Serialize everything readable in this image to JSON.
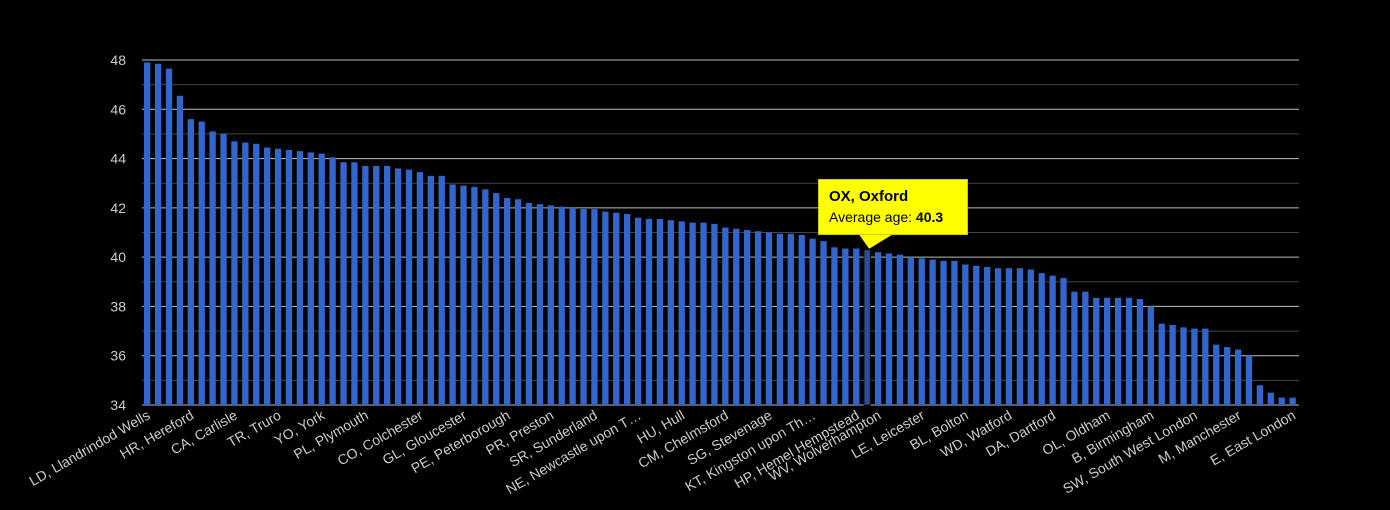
{
  "chart_data": {
    "type": "bar",
    "title": "",
    "xlabel": "",
    "ylabel": "",
    "ylim": [
      34,
      48
    ],
    "y_ticks": [
      34,
      36,
      38,
      40,
      42,
      44,
      46,
      48
    ],
    "grid": true,
    "legend": "none",
    "bar_color": "#3366cc",
    "background": "#000000",
    "highlighted_index": 66,
    "visible_labels": [
      {
        "index": 0,
        "label": "LD, Llandrindod Wells"
      },
      {
        "index": 4,
        "label": "HR, Hereford"
      },
      {
        "index": 8,
        "label": "CA, Carlisle"
      },
      {
        "index": 12,
        "label": "TR, Truro"
      },
      {
        "index": 16,
        "label": "YO, York"
      },
      {
        "index": 20,
        "label": "PL, Plymouth"
      },
      {
        "index": 25,
        "label": "CO, Colchester"
      },
      {
        "index": 29,
        "label": "GL, Gloucester"
      },
      {
        "index": 33,
        "label": "PE, Peterborough"
      },
      {
        "index": 37,
        "label": "PR, Preston"
      },
      {
        "index": 41,
        "label": "SR, Sunderland"
      },
      {
        "index": 45,
        "label": "NE, Newcastle upon T…"
      },
      {
        "index": 49,
        "label": "HU, Hull"
      },
      {
        "index": 53,
        "label": "CM, Chelmsford"
      },
      {
        "index": 57,
        "label": "SG, Stevenage"
      },
      {
        "index": 61,
        "label": "KT, Kingston upon Th…"
      },
      {
        "index": 65,
        "label": "HP, Hemel Hempstead"
      },
      {
        "index": 67,
        "label": "WV, Wolverhampton"
      },
      {
        "index": 71,
        "label": "LE, Leicester"
      },
      {
        "index": 75,
        "label": "BL, Bolton"
      },
      {
        "index": 79,
        "label": "WD, Watford"
      },
      {
        "index": 83,
        "label": "DA, Dartford"
      },
      {
        "index": 88,
        "label": "OL, Oldham"
      },
      {
        "index": 92,
        "label": "B, Birmingham"
      },
      {
        "index": 96,
        "label": "SW, South West London"
      },
      {
        "index": 100,
        "label": "M, Manchester"
      },
      {
        "index": 105,
        "label": "E, East London"
      }
    ],
    "values": [
      47.9,
      47.85,
      47.65,
      46.55,
      45.6,
      45.5,
      45.1,
      45.0,
      44.7,
      44.65,
      44.6,
      44.45,
      44.4,
      44.35,
      44.3,
      44.25,
      44.2,
      44.05,
      43.85,
      43.85,
      43.7,
      43.7,
      43.7,
      43.6,
      43.55,
      43.45,
      43.3,
      43.3,
      42.95,
      42.9,
      42.85,
      42.75,
      42.6,
      42.4,
      42.35,
      42.2,
      42.15,
      42.1,
      42.05,
      42.0,
      41.95,
      41.95,
      41.85,
      41.8,
      41.75,
      41.6,
      41.55,
      41.55,
      41.5,
      41.45,
      41.4,
      41.4,
      41.35,
      41.2,
      41.15,
      41.1,
      41.05,
      41.0,
      40.95,
      40.95,
      40.9,
      40.75,
      40.65,
      40.4,
      40.35,
      40.35,
      40.3,
      40.2,
      40.15,
      40.1,
      40.0,
      39.95,
      39.9,
      39.85,
      39.85,
      39.7,
      39.65,
      39.6,
      39.55,
      39.55,
      39.55,
      39.5,
      39.35,
      39.25,
      39.15,
      38.6,
      38.6,
      38.35,
      38.35,
      38.35,
      38.35,
      38.3,
      38.0,
      37.3,
      37.25,
      37.15,
      37.1,
      37.1,
      36.45,
      36.35,
      36.25,
      36.0,
      34.8,
      34.5,
      34.3,
      34.3
    ]
  },
  "tooltip": {
    "title": "OX, Oxford",
    "label": "Average age: ",
    "value": "40.3"
  }
}
